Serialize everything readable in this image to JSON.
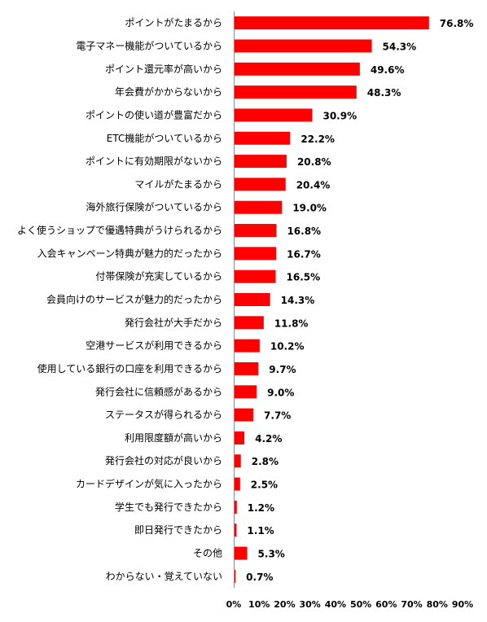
{
  "chart_data": {
    "type": "bar",
    "orientation": "horizontal",
    "title": "",
    "xlabel": "",
    "ylabel": "",
    "xlim": [
      0,
      90
    ],
    "x_ticks": [
      "0%",
      "10%",
      "20%",
      "30%",
      "40%",
      "50%",
      "60%",
      "70%",
      "80%",
      "90%"
    ],
    "x_tick_values": [
      0,
      10,
      20,
      30,
      40,
      50,
      60,
      70,
      80,
      90
    ],
    "grid": false,
    "legend": "none",
    "bar_color": "#ff0000",
    "categories": [
      "ポイントがたまるから",
      "電子マネー機能がついているから",
      "ポイント還元率が高いから",
      "年会費がかからないから",
      "ポイントの使い道が豊富だから",
      "ETC機能がついているから",
      "ポイントに有効期限がないから",
      "マイルがたまるから",
      "海外旅行保険がついているから",
      "よく使うショップで優遇特典がうけられるから",
      "入会キャンペーン特典が魅力的だったから",
      "付帯保険が充実しているから",
      "会員向けのサービスが魅力的だったから",
      "発行会社が大手だから",
      "空港サービスが利用できるから",
      "使用している銀行の口座を利用できるから",
      "発行会社に信頼感があるから",
      "ステータスが得られるから",
      "利用限度額が高いから",
      "発行会社の対応が良いから",
      "カードデザインが気に入ったから",
      "学生でも発行できたから",
      "即日発行できたから",
      "その他",
      "わからない・覚えていない"
    ],
    "values": [
      76.8,
      54.3,
      49.6,
      48.3,
      30.9,
      22.2,
      20.8,
      20.4,
      19.0,
      16.8,
      16.7,
      16.5,
      14.3,
      11.8,
      10.2,
      9.7,
      9.0,
      7.7,
      4.2,
      2.8,
      2.5,
      1.2,
      1.1,
      5.3,
      0.7
    ],
    "value_labels": [
      "76.8%",
      "54.3%",
      "49.6%",
      "48.3%",
      "30.9%",
      "22.2%",
      "20.8%",
      "20.4%",
      "19.0%",
      "16.8%",
      "16.7%",
      "16.5%",
      "14.3%",
      "11.8%",
      "10.2%",
      "9.7%",
      "9.0%",
      "7.7%",
      "4.2%",
      "2.8%",
      "2.5%",
      "1.2%",
      "1.1%",
      "5.3%",
      "0.7%"
    ]
  }
}
